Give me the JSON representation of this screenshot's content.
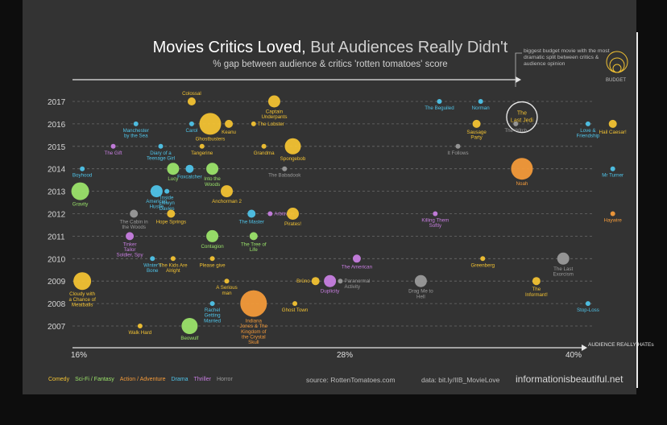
{
  "chart_data": {
    "type": "scatter",
    "title_part1": "Movies Critics Loved,",
    "title_part2": "But Audiences Really Didn't",
    "subtitle": "% gap between audience & critics 'rotten tomatoes' score",
    "note": "biggest budget movie with the most dramatic split between critics & audience opinion",
    "budget_label": "BUDGET",
    "xlabel": "AUDIENCE REALLY HATEs",
    "x_ticks": [
      "16%",
      "28%",
      "40%"
    ],
    "xlim": [
      16,
      40
    ],
    "years": [
      2017,
      2016,
      2015,
      2014,
      2013,
      2012,
      2011,
      2010,
      2009,
      2008,
      2007
    ],
    "genres": [
      {
        "key": "comedy",
        "label": "Comedy",
        "color": "#f2c233"
      },
      {
        "key": "scifi",
        "label": "Sci-Fi / Fantasy",
        "color": "#9be36a"
      },
      {
        "key": "action",
        "label": "Action / Adventure",
        "color": "#f39a3a"
      },
      {
        "key": "drama",
        "label": "Drama",
        "color": "#4fc3e8"
      },
      {
        "key": "thriller",
        "label": "Thriller",
        "color": "#c77ee0"
      },
      {
        "key": "horror",
        "label": "Horror",
        "color": "#9a9a9a"
      }
    ],
    "points": [
      {
        "name": "Colossal",
        "year": 2017,
        "x": 21.5,
        "size": 2,
        "genre": "comedy",
        "lp": "above"
      },
      {
        "name": "Captain Underpants",
        "year": 2017,
        "x": 25.5,
        "size": 3,
        "genre": "comedy",
        "lp": "below"
      },
      {
        "name": "The Beguiled",
        "year": 2017,
        "x": 33.5,
        "size": 1,
        "genre": "drama",
        "lp": "below"
      },
      {
        "name": "Norman",
        "year": 2017,
        "x": 35.5,
        "size": 1,
        "genre": "drama",
        "lp": "below"
      },
      {
        "name": "The Last Jedi",
        "year": 2017,
        "x": 37.5,
        "size": 0,
        "genre": "highlight",
        "lp": "none"
      },
      {
        "name": "Manchester by the Sea",
        "year": 2016,
        "x": 18.8,
        "size": 1,
        "genre": "drama",
        "lp": "below"
      },
      {
        "name": "Carol",
        "year": 2016,
        "x": 21.5,
        "size": 1,
        "genre": "drama",
        "lp": "below"
      },
      {
        "name": "Ghostbusters",
        "year": 2016,
        "x": 22.4,
        "size": 6,
        "genre": "comedy",
        "lp": "below"
      },
      {
        "name": "Keanu",
        "year": 2016,
        "x": 23.3,
        "size": 2,
        "genre": "comedy",
        "lp": "below"
      },
      {
        "name": "The Lobster",
        "year": 2016,
        "x": 24.5,
        "size": 1,
        "genre": "comedy",
        "lp": "right"
      },
      {
        "name": "Sausage Party",
        "year": 2016,
        "x": 35.3,
        "size": 2,
        "genre": "comedy",
        "lp": "below"
      },
      {
        "name": "The Witch",
        "year": 2016,
        "x": 37.2,
        "size": 1,
        "genre": "horror",
        "lp": "below"
      },
      {
        "name": "Love & Friendship",
        "year": 2016,
        "x": 40.7,
        "size": 1,
        "genre": "drama",
        "lp": "below"
      },
      {
        "name": "Hail Caesar!",
        "year": 2016,
        "x": 41.9,
        "size": 2,
        "genre": "comedy",
        "lp": "below"
      },
      {
        "name": "The Gift",
        "year": 2015,
        "x": 17.7,
        "size": 1,
        "genre": "thriller",
        "lp": "below"
      },
      {
        "name": "Diary of a Teenage Girl",
        "year": 2015,
        "x": 20.0,
        "size": 1,
        "genre": "drama",
        "lp": "below"
      },
      {
        "name": "Tangerine",
        "year": 2015,
        "x": 22.0,
        "size": 1,
        "genre": "comedy",
        "lp": "below"
      },
      {
        "name": "Grandma",
        "year": 2015,
        "x": 25.0,
        "size": 1,
        "genre": "comedy",
        "lp": "below"
      },
      {
        "name": "Spongebob",
        "year": 2015,
        "x": 26.4,
        "size": 4,
        "genre": "comedy",
        "lp": "below"
      },
      {
        "name": "It Follows",
        "year": 2015,
        "x": 34.4,
        "size": 1,
        "genre": "horror",
        "lp": "below"
      },
      {
        "name": "Boyhood",
        "year": 2014,
        "x": 16.2,
        "size": 1,
        "genre": "drama",
        "lp": "below"
      },
      {
        "name": "Lucy",
        "year": 2014,
        "x": 20.6,
        "size": 3,
        "genre": "scifi",
        "lp": "below"
      },
      {
        "name": "Foxcatcher",
        "year": 2014,
        "x": 21.4,
        "size": 2,
        "genre": "drama",
        "lp": "below"
      },
      {
        "name": "Into the Woods",
        "year": 2014,
        "x": 22.5,
        "size": 3,
        "genre": "scifi",
        "lp": "below"
      },
      {
        "name": "The Babadook",
        "year": 2014,
        "x": 26.0,
        "size": 1,
        "genre": "horror",
        "lp": "below"
      },
      {
        "name": "Noah",
        "year": 2014,
        "x": 37.5,
        "size": 6,
        "genre": "action",
        "lp": "below"
      },
      {
        "name": "Mr Turner",
        "year": 2014,
        "x": 41.9,
        "size": 1,
        "genre": "drama",
        "lp": "below"
      },
      {
        "name": "Gravity",
        "year": 2013,
        "x": 16.1,
        "size": 5,
        "genre": "scifi",
        "lp": "below"
      },
      {
        "name": "American Hustle",
        "year": 2013,
        "x": 19.8,
        "size": 3,
        "genre": "drama",
        "lp": "below"
      },
      {
        "name": "Inside Llewyn Davies",
        "year": 2013,
        "x": 20.3,
        "size": 1,
        "genre": "drama",
        "lp": "below"
      },
      {
        "name": "Anchorman 2",
        "year": 2013,
        "x": 23.2,
        "size": 3,
        "genre": "comedy",
        "lp": "below"
      },
      {
        "name": "The Cabin in the Woods",
        "year": 2012,
        "x": 18.7,
        "size": 2,
        "genre": "horror",
        "lp": "below"
      },
      {
        "name": "Hope Springs",
        "year": 2012,
        "x": 20.5,
        "size": 2,
        "genre": "comedy",
        "lp": "below"
      },
      {
        "name": "The Master",
        "year": 2012,
        "x": 24.4,
        "size": 2,
        "genre": "drama",
        "lp": "below"
      },
      {
        "name": "Arbitrage",
        "year": 2012,
        "x": 25.3,
        "size": 1,
        "genre": "thriller",
        "lp": "right"
      },
      {
        "name": "Pirates!",
        "year": 2012,
        "x": 26.4,
        "size": 3,
        "genre": "comedy",
        "lp": "below"
      },
      {
        "name": "Killing Them Softly",
        "year": 2012,
        "x": 33.3,
        "size": 1,
        "genre": "thriller",
        "lp": "below"
      },
      {
        "name": "Haywire",
        "year": 2012,
        "x": 41.9,
        "size": 1,
        "genre": "action",
        "lp": "below"
      },
      {
        "name": "Tinker Tailor Soldier, Spy",
        "year": 2011,
        "x": 18.5,
        "size": 2,
        "genre": "thriller",
        "lp": "below"
      },
      {
        "name": "Contagion",
        "year": 2011,
        "x": 22.5,
        "size": 3,
        "genre": "scifi",
        "lp": "below"
      },
      {
        "name": "The Tree of Life",
        "year": 2011,
        "x": 24.5,
        "size": 2,
        "genre": "scifi",
        "lp": "below"
      },
      {
        "name": "Winter's Bone",
        "year": 2010,
        "x": 19.6,
        "size": 1,
        "genre": "drama",
        "lp": "below"
      },
      {
        "name": "The Kids Are Alright",
        "year": 2010,
        "x": 20.6,
        "size": 1,
        "genre": "comedy",
        "lp": "below"
      },
      {
        "name": "Please give",
        "year": 2010,
        "x": 22.5,
        "size": 1,
        "genre": "comedy",
        "lp": "below"
      },
      {
        "name": "The American",
        "year": 2010,
        "x": 29.5,
        "size": 2,
        "genre": "thriller",
        "lp": "below"
      },
      {
        "name": "Greenberg",
        "year": 2010,
        "x": 35.6,
        "size": 1,
        "genre": "comedy",
        "lp": "below"
      },
      {
        "name": "The Last Exorcism",
        "year": 2010,
        "x": 39.5,
        "size": 3,
        "genre": "horror",
        "lp": "below"
      },
      {
        "name": "Cloudy with a Chance of Meatballs",
        "year": 2009,
        "x": 16.2,
        "size": 5,
        "genre": "comedy",
        "lp": "below"
      },
      {
        "name": "A Serious man",
        "year": 2009,
        "x": 23.2,
        "size": 1,
        "genre": "comedy",
        "lp": "below"
      },
      {
        "name": "Brüno",
        "year": 2009,
        "x": 27.5,
        "size": 2,
        "genre": "comedy",
        "lp": "left"
      },
      {
        "name": "Duplicity",
        "year": 2009,
        "x": 28.2,
        "size": 3,
        "genre": "thriller",
        "lp": "below"
      },
      {
        "name": "Paranormal Activity",
        "year": 2009,
        "x": 28.7,
        "size": 1,
        "genre": "horror",
        "lp": "right"
      },
      {
        "name": "Drag Me to Hell",
        "year": 2009,
        "x": 32.6,
        "size": 3,
        "genre": "horror",
        "lp": "below"
      },
      {
        "name": "The Informant!",
        "year": 2009,
        "x": 38.2,
        "size": 2,
        "genre": "comedy",
        "lp": "below"
      },
      {
        "name": "Rachel Getting Married",
        "year": 2008,
        "x": 22.5,
        "size": 1,
        "genre": "drama",
        "lp": "below"
      },
      {
        "name": "Indiana Jones & The Kingdom of the Crystal Skull",
        "year": 2008,
        "x": 24.5,
        "size": 7,
        "genre": "action",
        "lp": "below"
      },
      {
        "name": "Ghost Town",
        "year": 2008,
        "x": 26.5,
        "size": 1,
        "genre": "comedy",
        "lp": "below"
      },
      {
        "name": "Stop-Loss",
        "year": 2008,
        "x": 40.7,
        "size": 1,
        "genre": "drama",
        "lp": "below"
      },
      {
        "name": "Walk Hard",
        "year": 2007,
        "x": 19.0,
        "size": 1,
        "genre": "comedy",
        "lp": "below"
      },
      {
        "name": "Beowulf",
        "year": 2007,
        "x": 21.4,
        "size": 4,
        "genre": "scifi",
        "lp": "below"
      }
    ],
    "highlight": {
      "name": "The Last Jedi"
    }
  },
  "footer": {
    "source": "source: RottenTomatoes.com",
    "data": "data: bit.ly/IIB_MovieLove",
    "brand": "informationisbeautiful.net"
  }
}
